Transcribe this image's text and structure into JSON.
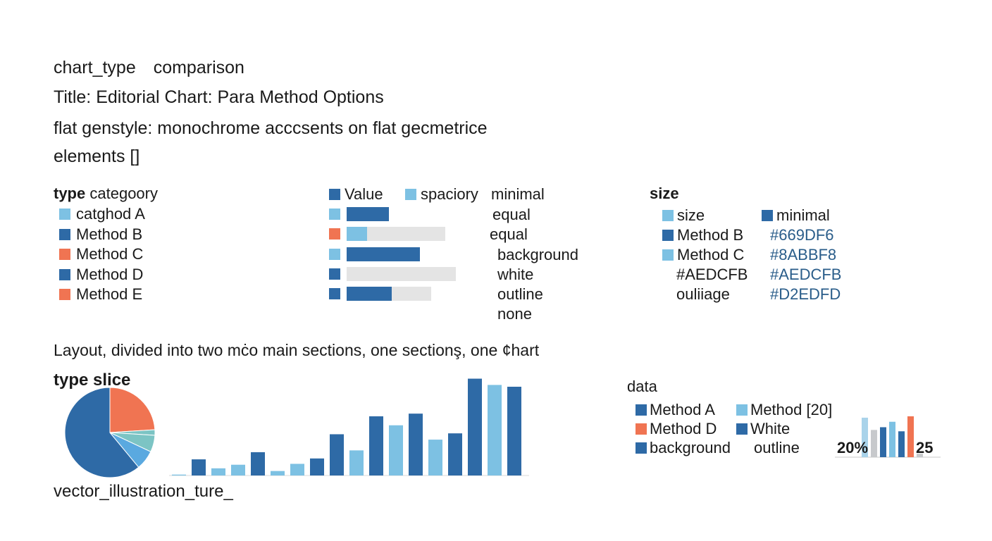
{
  "header": {
    "chart_type_key": "chart_type",
    "chart_type_value": "comparison",
    "title": "Title: Editorial Chart: Para Method Options",
    "style_line": "flat genstyle: monochrome acccsents on flat gecmetrice",
    "elements_line": "elements []"
  },
  "colors": {
    "dark_blue": "#2e6aa6",
    "light_blue": "#7dc1e3",
    "orange": "#f07452",
    "teal": "#7cc4c4",
    "light_gray": "#e4e4e4",
    "mid_gray": "#c7c9cc",
    "hex_text": "#2a5d8a"
  },
  "category_panel": {
    "heading_bold": "type",
    "heading_rest": "categoory",
    "items": [
      {
        "label": "catghod A",
        "color": "#7dc1e3"
      },
      {
        "label": "Method B",
        "color": "#2e6aa6"
      },
      {
        "label": "Method C",
        "color": "#f07452"
      },
      {
        "label": "Method D",
        "color": "#2e6aa6"
      },
      {
        "label": "Method E",
        "color": "#f07452"
      }
    ]
  },
  "value_panel": {
    "legend": [
      {
        "label": "Value",
        "color": "#2e6aa6"
      },
      {
        "label": "spaciory",
        "color": "#7dc1e3"
      }
    ],
    "column_header": "minimal",
    "rows": [
      {
        "marker_color": "#7dc1e3",
        "fill_color": "#2e6aa6",
        "fill": 0.43,
        "track": 0.43,
        "label": "equal"
      },
      {
        "marker_color": "#f07452",
        "fill_color": "#7dc1e3",
        "fill": 0.21,
        "track": 1.0,
        "label": "equal"
      },
      {
        "marker_color": "#7dc1e3",
        "fill_color": "#2e6aa6",
        "fill": 0.74,
        "track": 0.74,
        "label": "background"
      },
      {
        "marker_color": "#2e6aa6",
        "fill_color": "#2e6aa6",
        "fill": 0.0,
        "track": 1.11,
        "label": "white"
      },
      {
        "marker_color": "#2e6aa6",
        "fill_color": "#2e6aa6",
        "fill": 0.46,
        "track": 0.86,
        "label": "outline"
      }
    ],
    "trailing_label": "none"
  },
  "size_panel": {
    "heading": "size",
    "rows": [
      {
        "left_label": "size",
        "left_color": "#7dc1e3",
        "right_label": "minimal",
        "right_color": "#2e6aa6"
      },
      {
        "left_label": "Method B",
        "left_color": "#2e6aa6",
        "right_label": "#669DF6",
        "right_color": ""
      },
      {
        "left_label": "Method C",
        "left_color": "#7dc1e3",
        "right_label": "#8ABBF8",
        "right_color": ""
      },
      {
        "left_label": "#AEDCFB",
        "left_color": "",
        "right_label": "#AEDCFB",
        "right_color": ""
      },
      {
        "left_label": "ouliiage",
        "left_color": "",
        "right_label": "#D2EDFD",
        "right_color": ""
      }
    ]
  },
  "layout_line": {
    "bold": "Layout,",
    "rest": "divided into two mċo main sections, one sectionş, one ¢hart"
  },
  "pie_heading": "type slice",
  "footer_text": "vector_illustration_ture_",
  "data_legend": {
    "heading": "data",
    "items": [
      {
        "label": "Method A",
        "color": "#2e6aa6"
      },
      {
        "label": "Method [20]",
        "color": "#7dc1e3"
      },
      {
        "label": "Method D",
        "color": "#f07452"
      },
      {
        "label": "White",
        "color": "#2e6aa6"
      },
      {
        "label": "background",
        "color": "#2e6aa6"
      },
      {
        "label": "outline",
        "color": ""
      }
    ]
  },
  "mini_labels": {
    "left": "20%",
    "right": "25"
  },
  "chart_data": [
    {
      "type": "pie",
      "slices": [
        {
          "value": 61,
          "color": "#2e6aa6"
        },
        {
          "value": 24,
          "color": "#f07452"
        },
        {
          "value": 2,
          "color": "#7cc4c4"
        },
        {
          "value": 6,
          "color": "#7cc4c4"
        },
        {
          "value": 7,
          "color": "#5aa9e0"
        }
      ]
    },
    {
      "type": "bar",
      "values": [
        1,
        18,
        8,
        12,
        26,
        5,
        13,
        19,
        46,
        28,
        66,
        56,
        69,
        40,
        47,
        108,
        101,
        99
      ],
      "colors": [
        "#7dc1e3",
        "#2e6aa6",
        "#7dc1e3",
        "#7dc1e3",
        "#2e6aa6",
        "#7dc1e3",
        "#7dc1e3",
        "#2e6aa6",
        "#2e6aa6",
        "#7dc1e3",
        "#2e6aa6",
        "#7dc1e3",
        "#2e6aa6",
        "#7dc1e3",
        "#2e6aa6",
        "#2e6aa6",
        "#7dc1e3",
        "#2e6aa6"
      ],
      "ylim": [
        0,
        110
      ]
    },
    {
      "type": "bar",
      "values": [
        58,
        40,
        44,
        52,
        38,
        60,
        5
      ],
      "colors": [
        "#a9d3ea",
        "#c7c9cc",
        "#2e6aa6",
        "#7dc1e3",
        "#2e6aa6",
        "#f07452",
        "#c7c9cc"
      ],
      "ylim": [
        0,
        60
      ]
    }
  ]
}
